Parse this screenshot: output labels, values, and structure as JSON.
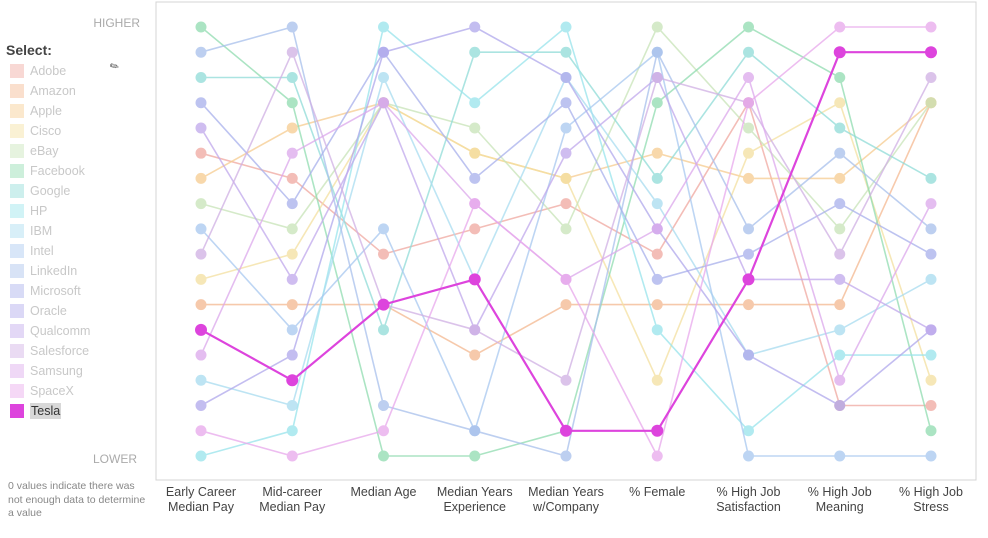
{
  "legend": {
    "title": "Select:",
    "cursor_glyph": "✎",
    "items": [
      {
        "name": "Adobe",
        "color": "#f0a8a0"
      },
      {
        "name": "Amazon",
        "color": "#f4b890"
      },
      {
        "name": "Apple",
        "color": "#f6cc90"
      },
      {
        "name": "Cisco",
        "color": "#f4e0a0"
      },
      {
        "name": "eBay",
        "color": "#c8e4b8"
      },
      {
        "name": "Facebook",
        "color": "#90dcb0"
      },
      {
        "name": "Google",
        "color": "#90dcd8"
      },
      {
        "name": "HP",
        "color": "#98e4ec"
      },
      {
        "name": "IBM",
        "color": "#a8dcf0"
      },
      {
        "name": "Intel",
        "color": "#a8c8f0"
      },
      {
        "name": "LinkedIn",
        "color": "#a8c0ec"
      },
      {
        "name": "Microsoft",
        "color": "#a8b0ec"
      },
      {
        "name": "Oracle",
        "color": "#b0a8ec"
      },
      {
        "name": "Qualcomm",
        "color": "#c0a8ec"
      },
      {
        "name": "Salesforce",
        "color": "#d0b0e4"
      },
      {
        "name": "Samsung",
        "color": "#dca8ec"
      },
      {
        "name": "SpaceX",
        "color": "#e8a8ec"
      },
      {
        "name": "Tesla",
        "color": "#dd44dd"
      }
    ],
    "selected": "Tesla"
  },
  "footnote": "0 values indicate there was not enough data to determine a value",
  "chart_data": {
    "type": "line",
    "subtype": "parallel-coordinates rank chart",
    "y_top_label": "HIGHER",
    "y_bottom_label": "LOWER",
    "ylim": [
      18,
      1
    ],
    "grid": false,
    "categories": [
      [
        "Early Career",
        "Median Pay"
      ],
      [
        "Mid-career",
        "Median Pay"
      ],
      [
        "Median Age"
      ],
      [
        "Median Years",
        "Experience"
      ],
      [
        "Median Years",
        "w/Company"
      ],
      [
        "% Female"
      ],
      [
        "% High Job",
        "Satisfaction"
      ],
      [
        "% High Job",
        "Meaning"
      ],
      [
        "% High Job",
        "Stress"
      ]
    ],
    "highlight_color": "#dd44dd",
    "series": [
      {
        "name": "Adobe",
        "values": [
          6,
          7,
          10,
          9,
          8,
          10,
          4,
          16,
          16
        ]
      },
      {
        "name": "Amazon",
        "values": [
          12,
          12,
          12,
          14,
          12,
          12,
          12,
          12,
          4
        ]
      },
      {
        "name": "Apple",
        "values": [
          7,
          5,
          4,
          6,
          7,
          6,
          7,
          7,
          4
        ]
      },
      {
        "name": "Cisco",
        "values": [
          11,
          10,
          4,
          6,
          7,
          15,
          6,
          4,
          15
        ]
      },
      {
        "name": "eBay",
        "values": [
          8,
          9,
          4,
          5,
          9,
          1,
          5,
          9,
          4
        ]
      },
      {
        "name": "Facebook",
        "values": [
          1,
          4,
          18,
          18,
          17,
          4,
          1,
          3,
          17
        ]
      },
      {
        "name": "Google",
        "values": [
          3,
          3,
          13,
          2,
          2,
          7,
          2,
          5,
          7
        ]
      },
      {
        "name": "HP",
        "values": [
          18,
          17,
          1,
          4,
          1,
          13,
          17,
          14,
          14
        ]
      },
      {
        "name": "IBM",
        "values": [
          15,
          16,
          3,
          11,
          3,
          8,
          14,
          13,
          11
        ]
      },
      {
        "name": "Intel",
        "values": [
          9,
          13,
          9,
          17,
          5,
          2,
          18,
          18,
          18
        ]
      },
      {
        "name": "LinkedIn",
        "values": [
          2,
          1,
          16,
          17,
          18,
          2,
          9,
          6,
          9
        ]
      },
      {
        "name": "Microsoft",
        "values": [
          4,
          8,
          2,
          7,
          4,
          11,
          10,
          8,
          10
        ]
      },
      {
        "name": "Oracle",
        "values": [
          16,
          14,
          2,
          1,
          3,
          9,
          14,
          16,
          13
        ]
      },
      {
        "name": "Qualcomm",
        "values": [
          5,
          11,
          4,
          13,
          6,
          3,
          11,
          11,
          13
        ]
      },
      {
        "name": "Salesforce",
        "values": [
          10,
          2,
          12,
          13,
          15,
          3,
          4,
          10,
          3
        ]
      },
      {
        "name": "Samsung",
        "values": [
          14,
          6,
          4,
          8,
          11,
          9,
          3,
          15,
          8
        ]
      },
      {
        "name": "SpaceX",
        "values": [
          17,
          18,
          17,
          8,
          11,
          18,
          4,
          1,
          1
        ]
      },
      {
        "name": "Tesla",
        "values": [
          13,
          15,
          12,
          11,
          17,
          17,
          11,
          2,
          2
        ]
      }
    ]
  }
}
